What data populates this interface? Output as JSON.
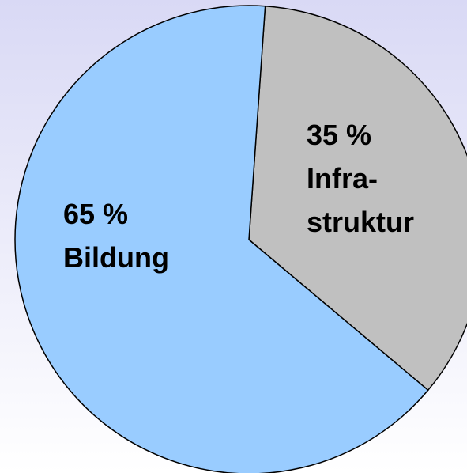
{
  "chart_data": {
    "type": "pie",
    "categories": [
      "Infra-\nstruktur",
      "Bildung"
    ],
    "values": [
      35,
      65
    ],
    "value_labels": [
      "35 %",
      "65 %"
    ],
    "colors": [
      "#c0c0c0",
      "#99ccff"
    ]
  }
}
